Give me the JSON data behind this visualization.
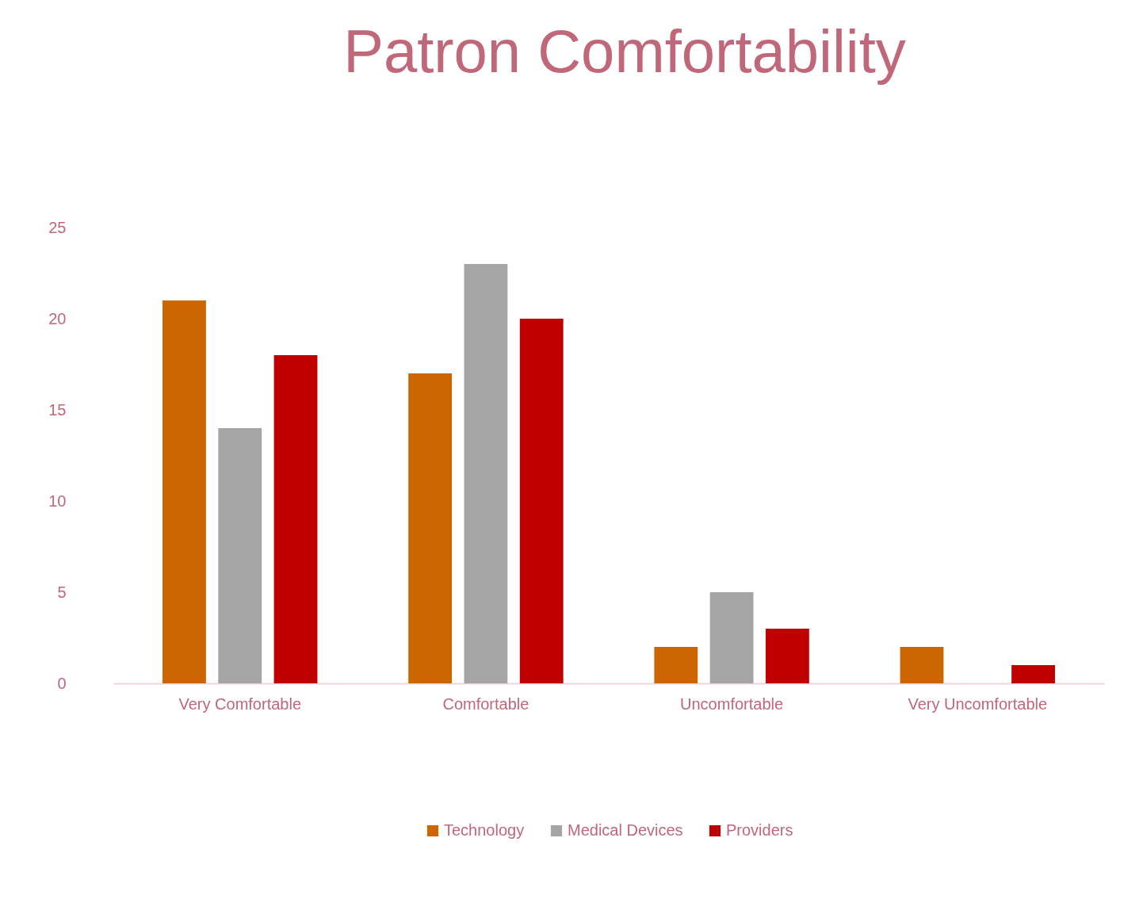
{
  "chart_data": {
    "type": "bar",
    "title": "Patron Comfortability",
    "categories": [
      "Very Comfortable",
      "Comfortable",
      "Uncomfortable",
      "Very Uncomfortable"
    ],
    "series": [
      {
        "name": "Technology",
        "color": "#cc6600",
        "values": [
          21,
          17,
          2,
          2
        ]
      },
      {
        "name": "Medical Devices",
        "color": "#a5a5a5",
        "values": [
          14,
          23,
          5,
          0
        ]
      },
      {
        "name": "Providers",
        "color": "#c00000",
        "values": [
          18,
          20,
          3,
          1
        ]
      }
    ],
    "ylim": [
      0,
      25
    ],
    "yticks": [
      0,
      5,
      10,
      15,
      20,
      25
    ],
    "grid": false,
    "legend": "bottom"
  }
}
